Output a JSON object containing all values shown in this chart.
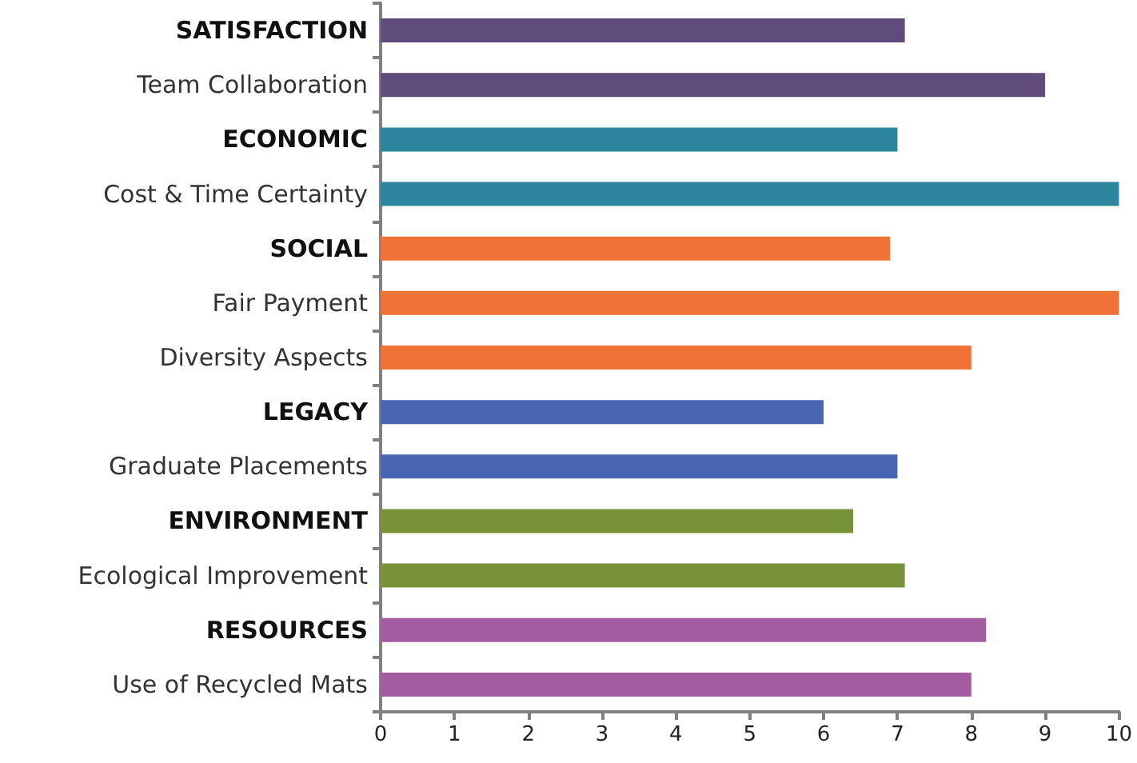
{
  "chart_data": {
    "type": "bar",
    "orientation": "horizontal",
    "categories": [
      "SATISFACTION",
      "Team Collaboration",
      "ECONOMIC",
      "Cost & Time Certainty",
      "SOCIAL",
      "Fair Payment",
      "Diversity Aspects",
      "LEGACY",
      "Graduate Placements",
      "ENVIRONMENT",
      "Ecological Improvement",
      "RESOURCES",
      "Use of Recycled Mats"
    ],
    "values": [
      7.1,
      9.0,
      7.0,
      10,
      6.9,
      10,
      8.0,
      6.0,
      7.0,
      6.4,
      7.1,
      8.2,
      8.0
    ],
    "colors": [
      "#604c7c",
      "#604c7c",
      "#2d869e",
      "#2d869e",
      "#f17236",
      "#f17236",
      "#f17236",
      "#4866b1",
      "#4866b1",
      "#779239",
      "#779239",
      "#a35c9f",
      "#a35c9f"
    ],
    "xlim": [
      0,
      10
    ],
    "xticks": [
      0,
      1,
      2,
      3,
      4,
      5,
      6,
      7,
      8,
      9,
      10
    ],
    "grid": false
  }
}
